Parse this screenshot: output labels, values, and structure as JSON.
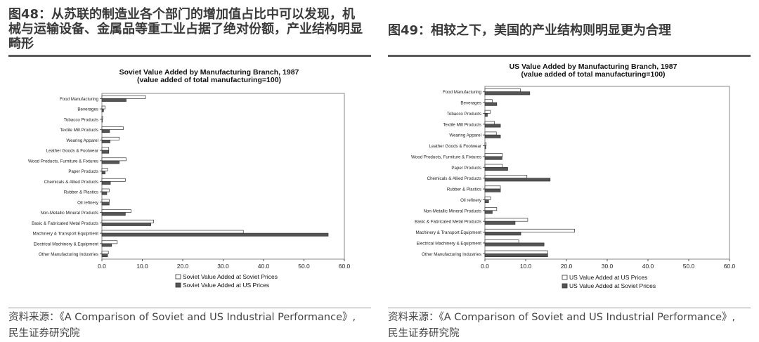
{
  "left_figure": {
    "heading": "图48：从苏联的制造业各个部门的增加值占比中可以发现，机械与运输设备、金属品等重工业占据了绝对份额，产业结构明显畸形",
    "source_line1": "资料来源：《A Comparison of Soviet and US Industrial Performance》,",
    "source_line2": "民生证券研究院"
  },
  "right_figure": {
    "heading": "图49：相较之下，美国的产业结构则明显更为合理",
    "source_line1": "资料来源：《A Comparison of Soviet and US Industrial Performance》,",
    "source_line2": "民生证券研究院"
  },
  "chart_data": [
    {
      "type": "bar",
      "orientation": "horizontal",
      "title": "Soviet Value Added by Manufacturing Branch, 1987",
      "subtitle": "(value added of total manufacturing=100)",
      "categories": [
        "Food Manufacturing",
        "Beverages",
        "Tobacco Products",
        "Textile Mill Products",
        "Wearing Apparel",
        "Leather Goods & Footwear",
        "Wood Products, Furniture & Fixtures",
        "Paper Products",
        "Chemicals & Allied Products",
        "Rubber & Plastics",
        "Oil refinery",
        "Non-Metallic Mineral Products",
        "Basic & Fabricated Metal Products",
        "Machinery & Transport Equipment",
        "Electrical Machinery & Equipment",
        "Other Manufacturing Industries"
      ],
      "series": [
        {
          "name": "Soviet Value Added at Soviet Prices",
          "fill": "#ffffff",
          "values": [
            10.8,
            0.8,
            0.2,
            5.3,
            4.3,
            1.7,
            6.0,
            1.4,
            5.8,
            1.8,
            1.8,
            7.2,
            12.8,
            35.0,
            3.8,
            1.6
          ]
        },
        {
          "name": "Soviet Value Added at US Prices",
          "fill": "#555555",
          "values": [
            6.0,
            0.4,
            0.1,
            1.9,
            2.0,
            1.7,
            4.3,
            0.8,
            2.1,
            1.2,
            1.8,
            5.8,
            12.1,
            56.0,
            2.4,
            1.4
          ]
        }
      ],
      "xlim": [
        0,
        60
      ],
      "xticks": [
        "0.0",
        "10.0",
        "20.0",
        "30.0",
        "40.0",
        "50.0",
        "60.0"
      ],
      "legend_position": "bottom-right"
    },
    {
      "type": "bar",
      "orientation": "horizontal",
      "title": "US Value Added by Manufacturing Branch, 1987",
      "subtitle": "(value added of total manufacturing=100)",
      "categories": [
        "Food Manufacturing",
        "Beverages",
        "Tobacco Products",
        "Textile Mill Products",
        "Wearing Apparel",
        "Leather Goods & Footwear",
        "Wood Products, Furniture & Fixtures",
        "Paper Products",
        "Chemicals & Allied Products",
        "Rubber & Plastics",
        "Oil refinery",
        "Non-Metallic Mineral Products",
        "Basic & Fabricated Metal Products",
        "Machinery & Transport Equipment",
        "Electrical Machinery & Equipment",
        "Other Manufacturing Industries"
      ],
      "series": [
        {
          "name": "US Value Added at US Prices",
          "fill": "#ffffff",
          "values": [
            8.7,
            1.8,
            1.3,
            2.3,
            2.8,
            0.3,
            4.3,
            4.3,
            10.3,
            3.8,
            1.4,
            2.9,
            10.5,
            22.0,
            8.3,
            15.4
          ]
        },
        {
          "name": "US Value Added at Soviet Prices",
          "fill": "#555555",
          "values": [
            11.0,
            2.9,
            0.6,
            3.8,
            3.8,
            0.2,
            4.2,
            5.6,
            16.0,
            3.8,
            0.9,
            1.8,
            7.4,
            8.8,
            14.5,
            15.4
          ]
        }
      ],
      "xlim": [
        0,
        60
      ],
      "xticks": [
        "0.0",
        "20.0",
        "40.0",
        "60.0"
      ],
      "xticks_all": [
        "0.0",
        "10.0",
        "20.0",
        "30.0",
        "40.0",
        "50.0",
        "60.0"
      ],
      "legend_position": "bottom-right"
    }
  ]
}
